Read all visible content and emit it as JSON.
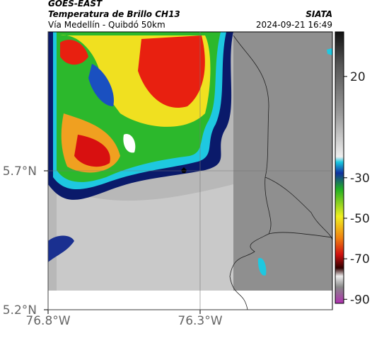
{
  "header": {
    "source": "GOES-EAST",
    "product": "Temperatura de Brillo CH13",
    "area": "Vía Medellín - Quibdó 50km",
    "agency": "SIATA",
    "datetime": "2024-09-21 16:49"
  },
  "map": {
    "lonlim": [
      -76.8,
      -75.865
    ],
    "latlim": [
      5.2,
      6.2
    ],
    "grid": true,
    "lon_ticks": [
      {
        "value": -76.8,
        "label": "76.8°W"
      },
      {
        "value": -76.3,
        "label": "76.3°W"
      }
    ],
    "lat_ticks": [
      {
        "value": 5.7,
        "label": "5.7°N"
      },
      {
        "value": 5.2,
        "label": "5.2°N"
      }
    ]
  },
  "colorbar": {
    "lim": [
      -92,
      42
    ],
    "ticks": [
      20,
      -30,
      -50,
      -70,
      -90
    ]
  }
}
